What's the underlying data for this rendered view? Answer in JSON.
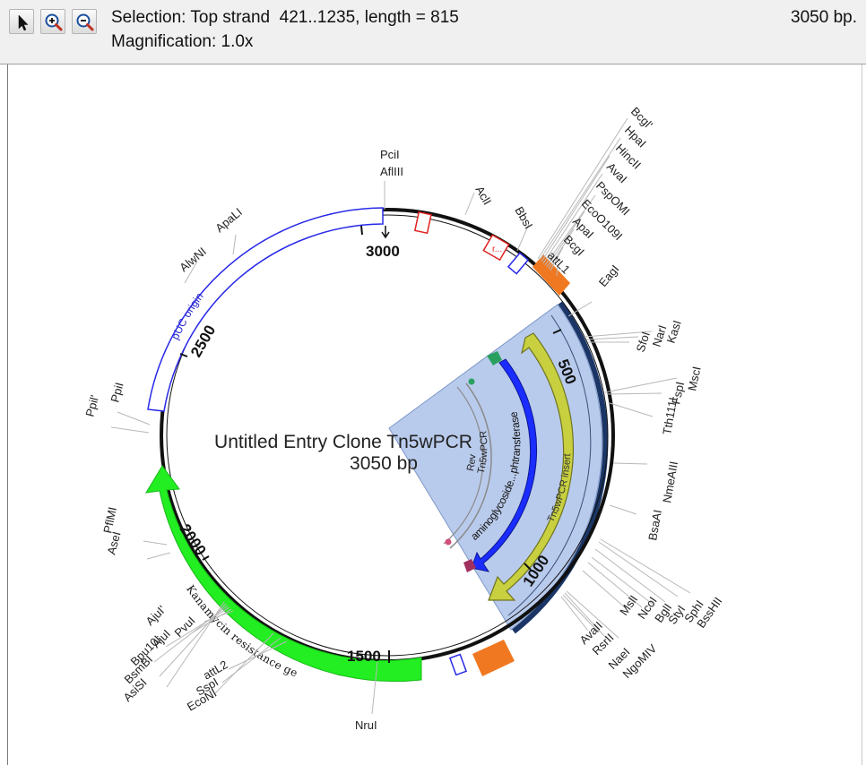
{
  "toolbar": {
    "tools": [
      {
        "name": "arrow-pointer-icon"
      },
      {
        "name": "zoom-in-icon"
      },
      {
        "name": "zoom-out-icon"
      }
    ],
    "selection_text": "Selection: Top strand  421..1235, length = 815",
    "magnification_text": "Magnification: 1.0x",
    "bp_count_text": "3050 bp."
  },
  "map": {
    "title": "Untitled Entry Clone Tn5wPCR",
    "size_label": "3050 bp",
    "total_bp": 3050,
    "selection": {
      "start": 421,
      "end": 1235
    },
    "tick_labels": [
      "500",
      "1000",
      "1500",
      "2000",
      "2500",
      "3000"
    ],
    "features": [
      {
        "label": "pUC origin",
        "color": "#3b3bff"
      },
      {
        "label": "Kanamycin resistance gene",
        "color": "#22ee22"
      },
      {
        "label": "attL1",
        "color": "#f07820"
      },
      {
        "label": "attL2",
        "color": "#f07820"
      },
      {
        "label": "Tn5wPCR insert",
        "color": "#c8d040"
      },
      {
        "label": "aminoglycoside...phtransferase",
        "color": "#1a2cff"
      },
      {
        "label": "Tn5wPCR",
        "color": "#6a6a6a"
      },
      {
        "label": "Rev",
        "color": "#6a6a6a"
      },
      {
        "label": "r...",
        "color": "#dd2222"
      }
    ],
    "sites": [
      "PciI",
      "AflIII",
      "AclI",
      "BbsI",
      "Bcgl'",
      "HpaI",
      "HincII",
      "AvaI",
      "PspOMI",
      "EcoO109I",
      "ApaI",
      "BcgI",
      "attL1",
      "EagI",
      "KasI",
      "NarI",
      "SfoI",
      "MscI",
      "FspI",
      "Tth111I",
      "NmeAIII",
      "BsaAI",
      "BssHII",
      "SphI",
      "StyI",
      "BglI",
      "NcoI",
      "MslI",
      "NgoMIV",
      "NaeI",
      "RsrII",
      "AvaII",
      "NruI",
      "EcoNI",
      "SspI",
      "attL2",
      "AsiSI",
      "BsmBI",
      "Bpu10I",
      "AjuI",
      "PvuI",
      "AjuI'",
      "AseI",
      "PflMI",
      "Ppil'",
      "PpiI",
      "AlwNI",
      "ApaLI"
    ]
  }
}
